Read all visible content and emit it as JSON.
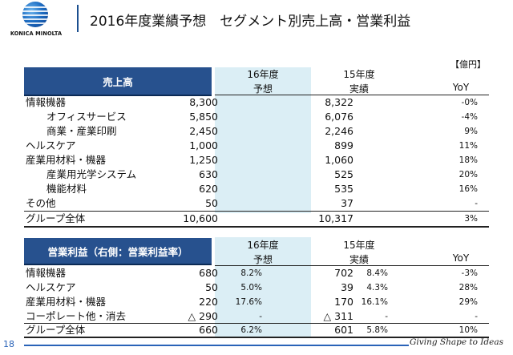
{
  "brand": {
    "logo_text": "KONICA MINOLTA",
    "tagline": "Giving Shape to Ideas"
  },
  "title": "2016年度業績予想　セグメント別売上高・営業利益",
  "unit_label": "【億円】",
  "page_number": "18",
  "colors": {
    "header_blue": "#27518e",
    "forecast_shade": "#dbeef5",
    "footer_blue": "#2a63b8"
  },
  "sales": {
    "heading": "売上高",
    "col_fy16": "16年度",
    "col_fy16_sub": "予想",
    "col_fy15": "15年度",
    "col_fy15_sub": "実績",
    "col_yoy": "YoY",
    "rows": [
      {
        "label": "情報機器",
        "fy16": "8,300",
        "fy15": "8,322",
        "yoy": "-0%"
      },
      {
        "label": "オフィスサービス",
        "fy16": "5,850",
        "fy15": "6,076",
        "yoy": "-4%"
      },
      {
        "label": "商業・産業印刷",
        "fy16": "2,450",
        "fy15": "2,246",
        "yoy": "9%"
      },
      {
        "label": "ヘルスケア",
        "fy16": "1,000",
        "fy15": "899",
        "yoy": "11%"
      },
      {
        "label": "産業用材料・機器",
        "fy16": "1,250",
        "fy15": "1,060",
        "yoy": "18%"
      },
      {
        "label": "産業用光学システム",
        "fy16": "630",
        "fy15": "525",
        "yoy": "20%"
      },
      {
        "label": "機能材料",
        "fy16": "620",
        "fy15": "535",
        "yoy": "16%"
      },
      {
        "label": "その他",
        "fy16": "50",
        "fy15": "37",
        "yoy": "-"
      },
      {
        "label": "グループ全体",
        "fy16": "10,600",
        "fy15": "10,317",
        "yoy": "3%"
      }
    ]
  },
  "op": {
    "heading": "営業利益（右側：営業利益率）",
    "col_fy16": "16年度",
    "col_fy16_sub": "予想",
    "col_fy15": "15年度",
    "col_fy15_sub": "実績",
    "col_yoy": "YoY",
    "rows": [
      {
        "label": "情報機器",
        "fy16": "680",
        "fy16_pct": "8.2%",
        "fy15": "702",
        "fy15_pct": "8.4%",
        "yoy": "-3%"
      },
      {
        "label": "ヘルスケア",
        "fy16": "50",
        "fy16_pct": "5.0%",
        "fy15": "39",
        "fy15_pct": "4.3%",
        "yoy": "28%"
      },
      {
        "label": "産業用材料・機器",
        "fy16": "220",
        "fy16_pct": "17.6%",
        "fy15": "170",
        "fy15_pct": "16.1%",
        "yoy": "29%"
      },
      {
        "label": "コーポレート他・消去",
        "fy16": "△ 290",
        "fy16_pct": "-",
        "fy15": "△ 311",
        "fy15_pct": "-",
        "yoy": "-"
      },
      {
        "label": "グループ全体",
        "fy16": "660",
        "fy16_pct": "6.2%",
        "fy15": "601",
        "fy15_pct": "5.8%",
        "yoy": "10%"
      }
    ]
  }
}
